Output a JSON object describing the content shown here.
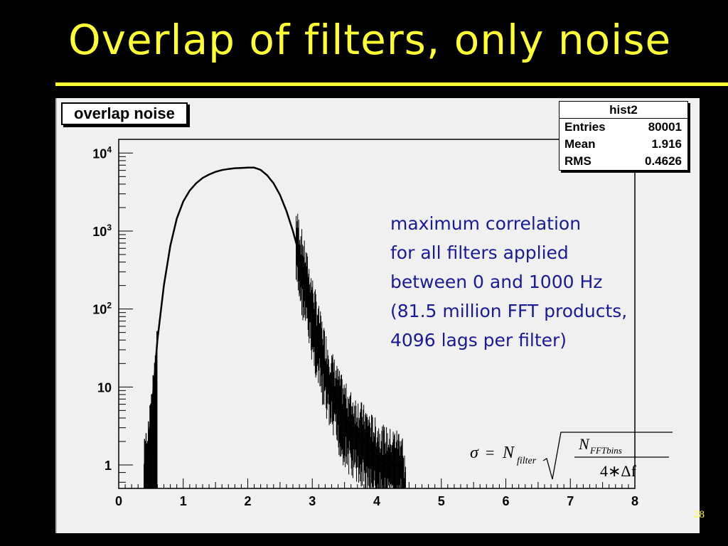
{
  "slide": {
    "title": "Overlap of filters, only noise",
    "page_number": "28"
  },
  "annotation": {
    "lines": [
      "maximum correlation",
      "for all filters applied",
      "between 0 and 1000 Hz",
      "(81.5 million FFT products,",
      "4096 lags per filter)"
    ]
  },
  "formula": {
    "sigma": "σ",
    "equals": "=",
    "n": "N",
    "n_subscript": "filter",
    "numerator": "N",
    "numerator_subscript": "FFTbins",
    "denominator": "4∗Δf"
  },
  "colors": {
    "background": "#000000",
    "title": "#ffff33",
    "annotation": "#1a1a99",
    "plot_background": "#f0f0f0"
  },
  "chart_data": {
    "type": "bar",
    "title": "overlap noise",
    "stats": {
      "name": "hist2",
      "rows": [
        {
          "label": "Entries",
          "value": "80001"
        },
        {
          "label": "Mean",
          "value": "1.916"
        },
        {
          "label": "RMS",
          "value": "0.4626"
        }
      ]
    },
    "x_range": [
      0,
      8
    ],
    "y_scale": "log",
    "y_range": [
      0.5,
      15000
    ],
    "x_ticks": [
      "0",
      "1",
      "2",
      "3",
      "4",
      "5",
      "6",
      "7",
      "8"
    ],
    "y_ticks": [
      {
        "value": 1,
        "label": "1"
      },
      {
        "value": 10,
        "label": "10"
      },
      {
        "value": 100,
        "label": "10",
        "sup": "2"
      },
      {
        "value": 1000,
        "label": "10",
        "sup": "3"
      },
      {
        "value": 10000,
        "label": "10",
        "sup": "4"
      }
    ],
    "grid": false,
    "series": [
      {
        "x": [
          0.4,
          0.45,
          0.5,
          0.55,
          0.6,
          0.7,
          0.8,
          0.9,
          1.0,
          1.1,
          1.2,
          1.3,
          1.4,
          1.5,
          1.6,
          1.7,
          1.8,
          1.9,
          2.0,
          2.1,
          2.2,
          2.3,
          2.4,
          2.5,
          2.6,
          2.7,
          2.8,
          2.9,
          3.0,
          3.1,
          3.2,
          3.3,
          3.4,
          3.5,
          3.6,
          3.7,
          3.8,
          3.9,
          4.0,
          4.1,
          4.2,
          4.3,
          4.4
        ],
        "y": [
          1,
          1.5,
          4,
          12,
          40,
          200,
          650,
          1450,
          2400,
          3300,
          4100,
          4800,
          5300,
          5750,
          6050,
          6250,
          6400,
          6450,
          6500,
          6500,
          6100,
          5200,
          4100,
          2900,
          1800,
          1000,
          500,
          210,
          90,
          38,
          18,
          10,
          6,
          4,
          3,
          2.5,
          2,
          1.6,
          1.3,
          1.1,
          1,
          1,
          1
        ]
      }
    ]
  }
}
